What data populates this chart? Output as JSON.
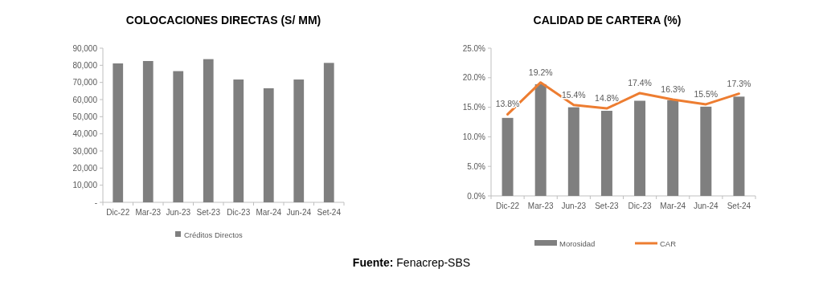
{
  "chart_data": [
    {
      "type": "bar",
      "title": "COLOCACIONES DIRECTAS (S/ MM)",
      "categories": [
        "Dic-22",
        "Mar-23",
        "Jun-23",
        "Set-23",
        "Dic-23",
        "Mar-24",
        "Jun-24",
        "Set-24"
      ],
      "series": [
        {
          "name": "Créditos Directos",
          "color": "#7f7f7f",
          "values": [
            81100,
            82500,
            76600,
            83600,
            71700,
            66600,
            71700,
            81400
          ]
        }
      ],
      "ylim": [
        0,
        90000
      ],
      "yticks": [
        {
          "value": 0,
          "label": "-"
        },
        {
          "value": 10000,
          "label": "10,000"
        },
        {
          "value": 20000,
          "label": "20,000"
        },
        {
          "value": 30000,
          "label": "30,000"
        },
        {
          "value": 40000,
          "label": "40,000"
        },
        {
          "value": 50000,
          "label": "50,000"
        },
        {
          "value": 60000,
          "label": "60,000"
        },
        {
          "value": 70000,
          "label": "70,000"
        },
        {
          "value": 80000,
          "label": "80,000"
        },
        {
          "value": 90000,
          "label": "90,000"
        }
      ],
      "grid": false,
      "legend": "bottom"
    },
    {
      "type": "bar",
      "title": "CALIDAD DE CARTERA (%)",
      "categories": [
        "Dic-22",
        "Mar-23",
        "Jun-23",
        "Set-23",
        "Dic-23",
        "Mar-24",
        "Jun-24",
        "Set-24"
      ],
      "series": [
        {
          "name": "Morosidad",
          "color": "#7f7f7f",
          "values": [
            13.2,
            18.9,
            15.0,
            14.4,
            16.1,
            16.2,
            15.1,
            16.8
          ]
        },
        {
          "name": "CAR",
          "type": "line",
          "color": "#ed7d31",
          "values": [
            13.8,
            19.2,
            15.4,
            14.8,
            17.4,
            16.3,
            15.5,
            17.3
          ],
          "value_labels": [
            "13.8%",
            "19.2%",
            "15.4%",
            "14.8%",
            "17.4%",
            "16.3%",
            "15.5%",
            "17.3%"
          ]
        }
      ],
      "ylim": [
        0,
        25
      ],
      "yticks": [
        {
          "value": 0,
          "label": "0.0%"
        },
        {
          "value": 5,
          "label": "5.0%"
        },
        {
          "value": 10,
          "label": "10.0%"
        },
        {
          "value": 15,
          "label": "15.0%"
        },
        {
          "value": 20,
          "label": "20.0%"
        },
        {
          "value": 25,
          "label": "25.0%"
        }
      ],
      "grid": false,
      "legend": "bottom",
      "line_style": "solid",
      "marker": "none",
      "annotations": [
        "Fuente: Fenacrep-SBS"
      ]
    }
  ]
}
